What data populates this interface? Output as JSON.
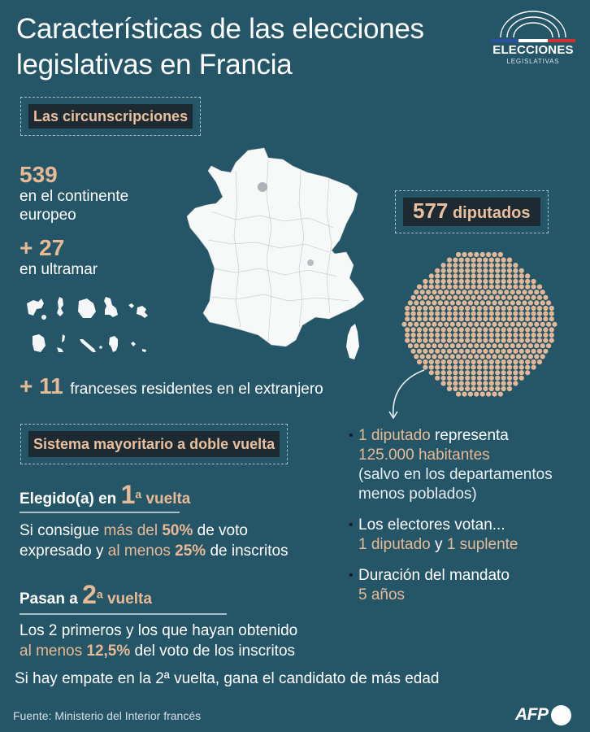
{
  "title": {
    "line1": "Características de las elecciones",
    "line2": "legislativas en Francia"
  },
  "logo": {
    "icon": "hemicycle-arc-icon",
    "main": "ELECCIONES",
    "sub": "LEGISLATIVAS",
    "stripe_colors": [
      "#2b4fa3",
      "#ffffff",
      "#d32f2f"
    ]
  },
  "circunscripciones": {
    "label": "Las circunscripciones",
    "continent_count": "539",
    "continent_text_1": "en el continente",
    "continent_text_2": "europeo",
    "overseas_count": "+ 27",
    "overseas_text": "en ultramar",
    "abroad_count": "+ 11",
    "abroad_text": "franceses residentes en el extranjero"
  },
  "diputados": {
    "count": "577",
    "label": "diputados",
    "dot_color": "#e4b896",
    "facts": [
      {
        "lines": [
          [
            {
              "t": "1 diputado",
              "c": "peach"
            },
            {
              "t": " representa",
              "c": "white"
            }
          ],
          [
            {
              "t": "125.000 habitantes",
              "c": "peach"
            }
          ],
          [
            {
              "t": "(salvo en los departamentos",
              "c": "light"
            }
          ],
          [
            {
              "t": "menos poblados)",
              "c": "light"
            }
          ]
        ]
      },
      {
        "lines": [
          [
            {
              "t": "Los electores votan...",
              "c": "white"
            }
          ],
          [
            {
              "t": "1 diputado",
              "c": "peach"
            },
            {
              "t": " y ",
              "c": "white"
            },
            {
              "t": "1 suplente",
              "c": "peach"
            }
          ]
        ]
      },
      {
        "lines": [
          [
            {
              "t": "Duración del mandato",
              "c": "white"
            }
          ],
          [
            {
              "t": "5 años",
              "c": "peach"
            }
          ]
        ]
      }
    ]
  },
  "sistema": {
    "label": "Sistema mayoritario a doble vuelta",
    "first_round": {
      "heading_pre": "Elegido(a) en ",
      "num": "1",
      "sup": "a",
      "heading_post": " vuelta",
      "l1_a": "Si consigue ",
      "l1_b": "más del ",
      "l1_c": "50%",
      "l1_d": " de voto",
      "l2_a": "expresado y ",
      "l2_b": "al menos ",
      "l2_c": "25%",
      "l2_d": " de inscritos"
    },
    "second_round": {
      "heading_pre": "Pasan a ",
      "num": "2",
      "sup": "a",
      "heading_post": " vuelta",
      "l1": "Los 2 primeros y los que hayan obtenido",
      "l2_a": "al menos ",
      "l2_b": "12,5%",
      "l2_c": " del voto de los inscritos"
    },
    "tie_rule": "Si hay empate en la 2ª vuelta, gana el candidato de más edad"
  },
  "footer": {
    "source": "Fuente: Ministerio del Interior francés",
    "brand": "AFP"
  },
  "colors": {
    "background": "#245668",
    "accent": "#e8b995",
    "label_bg": "#1e2a31"
  }
}
